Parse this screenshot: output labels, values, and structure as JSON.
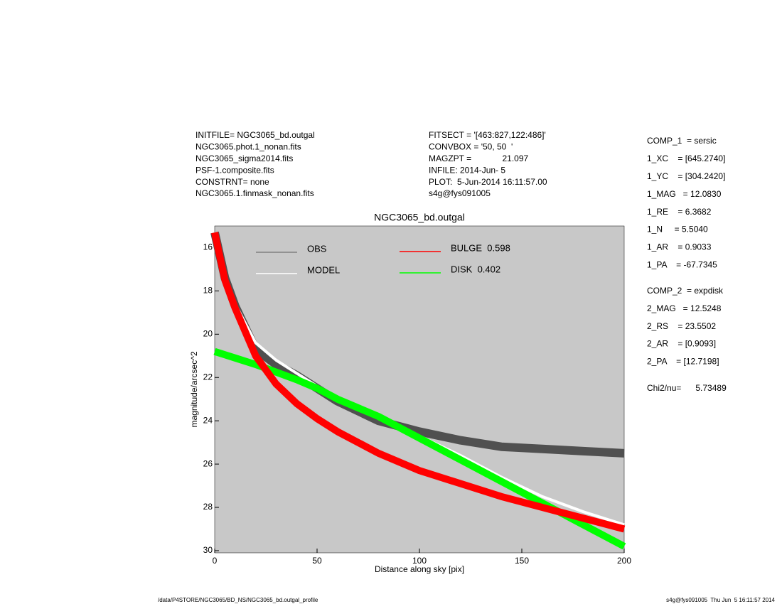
{
  "header": {
    "left": [
      "INITFILE= NGC3065_bd.outgal",
      "NGC3065.phot.1_nonan.fits",
      "NGC3065_sigma2014.fits",
      "PSF-1.composite.fits",
      "CONSTRNT= none",
      "NGC3065.1.finmask_nonan.fits"
    ],
    "middle": [
      "FITSECT = '[463:827,122:486]'",
      "CONVBOX = '50, 50  '",
      "MAGZPT =             21.097",
      "INFILE: 2014-Jun- 5",
      "PLOT:  5-Jun-2014 16:11:57.00",
      "s4g@fys091005"
    ]
  },
  "params": {
    "comp1": [
      "COMP_1  = sersic",
      "1_XC    = [645.2740]",
      "1_YC    = [304.2420]",
      "1_MAG   = 12.0830",
      "1_RE    = 6.3682",
      "1_N     = 5.5040",
      "1_AR    = 0.9033",
      "1_PA    = -67.7345"
    ],
    "comp2": [
      "COMP_2  = expdisk",
      "2_MAG   = 12.5248",
      "2_RS    = 23.5502",
      "2_AR    = [0.9093]",
      "2_PA    = [12.7198]"
    ],
    "chi2": "Chi2/nu=      5.73489"
  },
  "footer": {
    "left": "/data/P4STORE/NGC3065/BD_NS/NGC3065_bd.outgal_profile",
    "right": "s4g@fys091005  Thu Jun  5 16:11:57 2014"
  },
  "chart_data": {
    "type": "line",
    "title": "NGC3065_bd.outgal",
    "xlabel": "Distance along sky [pix]",
    "ylabel": "magnitude/arcsec^2",
    "x": [
      0,
      5,
      10,
      20,
      30,
      40,
      50,
      60,
      80,
      100,
      120,
      140,
      160,
      180,
      200
    ],
    "series": [
      {
        "name": "OBS",
        "color": "#808080",
        "mark_color": "#505050",
        "values": [
          15.3,
          17.4,
          18.7,
          20.7,
          21.4,
          21.9,
          22.5,
          23.1,
          24.0,
          24.5,
          24.9,
          25.2,
          25.3,
          25.4,
          25.5
        ]
      },
      {
        "name": "MODEL",
        "color": "#ffffff",
        "values": [
          15.3,
          17.4,
          18.6,
          20.4,
          21.2,
          21.8,
          22.4,
          22.9,
          23.8,
          24.7,
          25.6,
          26.6,
          27.5,
          28.2,
          28.8
        ]
      },
      {
        "name": "DISK  0.402",
        "color": "#00ff00",
        "values": [
          20.8,
          20.95,
          21.1,
          21.4,
          21.75,
          22.1,
          22.5,
          23.0,
          23.8,
          24.8,
          25.8,
          26.8,
          27.8,
          28.8,
          29.8
        ]
      },
      {
        "name": "BULGE  0.598",
        "color": "#ff0000",
        "values": [
          15.3,
          17.5,
          18.8,
          21.0,
          22.3,
          23.2,
          23.9,
          24.5,
          25.5,
          26.3,
          26.9,
          27.5,
          28.0,
          28.5,
          29.0
        ]
      }
    ],
    "xlim": [
      0,
      200
    ],
    "ylim": [
      30.1,
      15
    ],
    "xticks": [
      0,
      50,
      100,
      150,
      200
    ],
    "yticks": [
      16,
      18,
      20,
      22,
      24,
      26,
      28,
      30
    ],
    "background": "#c8c8c8"
  }
}
